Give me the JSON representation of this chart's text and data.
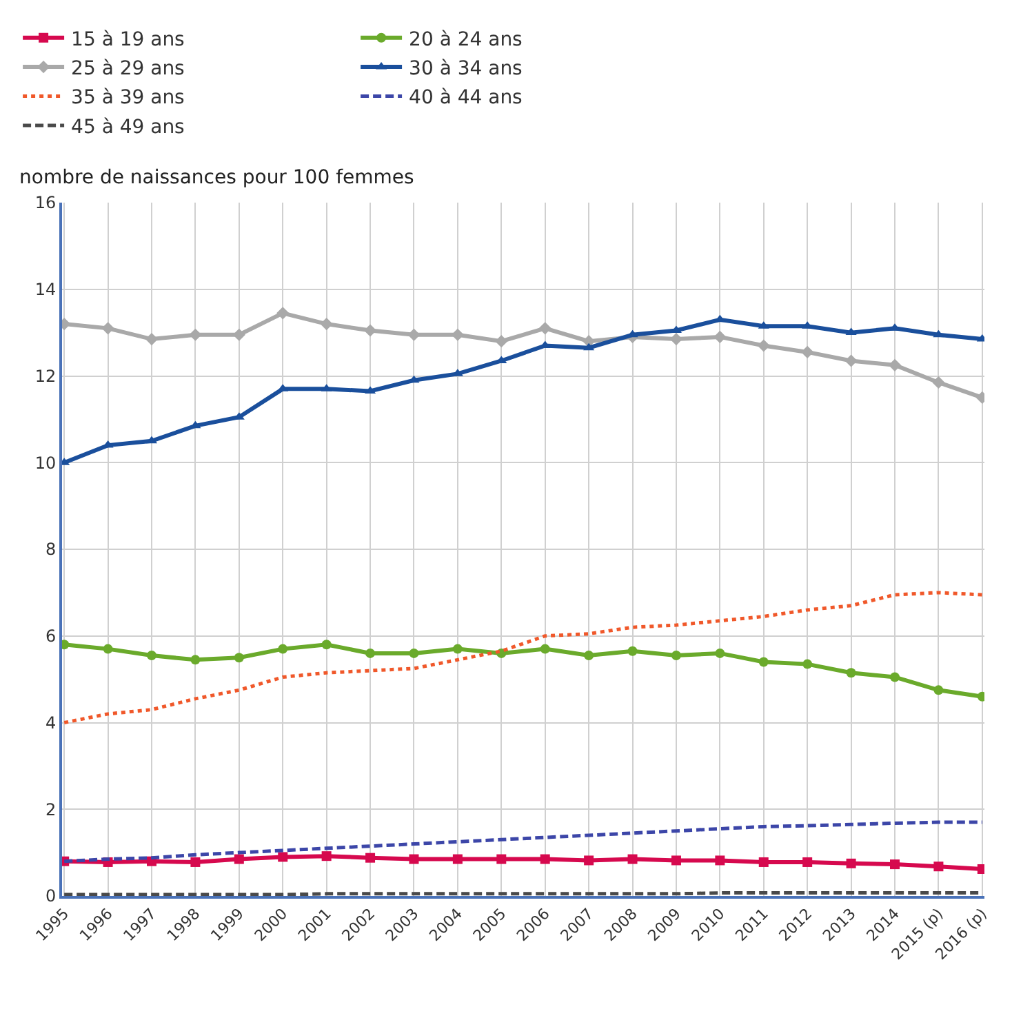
{
  "chart_data": {
    "type": "line",
    "ylabel": "nombre de naissances pour 100 femmes",
    "categories": [
      "1995",
      "1996",
      "1997",
      "1998",
      "1999",
      "2000",
      "2001",
      "2002",
      "2003",
      "2004",
      "2005",
      "2006",
      "2007",
      "2008",
      "2009",
      "2010",
      "2011",
      "2012",
      "2013",
      "2014",
      "2015 (p)",
      "2016 (p)"
    ],
    "series": [
      {
        "name": "15 à 19 ans",
        "color": "#d6094e",
        "marker": "square",
        "line_style": "solid",
        "values": [
          0.8,
          0.78,
          0.8,
          0.78,
          0.85,
          0.9,
          0.92,
          0.88,
          0.85,
          0.85,
          0.85,
          0.85,
          0.82,
          0.85,
          0.82,
          0.82,
          0.78,
          0.78,
          0.75,
          0.73,
          0.68,
          0.62
        ]
      },
      {
        "name": "20 à 24 ans",
        "color": "#6aaa2b",
        "marker": "circle",
        "line_style": "solid",
        "values": [
          5.8,
          5.7,
          5.55,
          5.45,
          5.5,
          5.7,
          5.8,
          5.6,
          5.6,
          5.7,
          5.6,
          5.7,
          5.55,
          5.65,
          5.55,
          5.6,
          5.4,
          5.35,
          5.15,
          5.05,
          4.75,
          4.6
        ]
      },
      {
        "name": "25 à 29 ans",
        "color": "#a9a9a9",
        "marker": "diamond",
        "line_style": "solid",
        "values": [
          13.2,
          13.1,
          12.85,
          12.95,
          12.95,
          13.45,
          13.2,
          13.05,
          12.95,
          12.95,
          12.8,
          13.1,
          12.8,
          12.9,
          12.85,
          12.9,
          12.7,
          12.55,
          12.35,
          12.25,
          11.85,
          11.5
        ]
      },
      {
        "name": "30 à 34 ans",
        "color": "#1a4f9c",
        "marker": "triangle",
        "line_style": "solid",
        "values": [
          10.0,
          10.4,
          10.5,
          10.85,
          11.05,
          11.7,
          11.7,
          11.65,
          11.9,
          12.05,
          12.35,
          12.7,
          12.65,
          12.95,
          13.05,
          13.3,
          13.15,
          13.15,
          13.0,
          13.1,
          12.95,
          12.85
        ]
      },
      {
        "name": "35 à 39 ans",
        "color": "#f0582a",
        "marker": "none",
        "line_style": "dotted",
        "values": [
          4.0,
          4.2,
          4.3,
          4.55,
          4.75,
          5.05,
          5.15,
          5.2,
          5.25,
          5.45,
          5.65,
          6.0,
          6.05,
          6.2,
          6.25,
          6.35,
          6.45,
          6.6,
          6.7,
          6.95,
          7.0,
          6.95
        ]
      },
      {
        "name": "40 à 44 ans",
        "color": "#3c46a8",
        "marker": "none",
        "line_style": "dashed",
        "values": [
          0.8,
          0.85,
          0.88,
          0.95,
          1.0,
          1.05,
          1.1,
          1.15,
          1.2,
          1.25,
          1.3,
          1.35,
          1.4,
          1.45,
          1.5,
          1.55,
          1.6,
          1.62,
          1.65,
          1.68,
          1.7,
          1.7
        ]
      },
      {
        "name": "45 à 49 ans",
        "color": "#4a4a4a",
        "marker": "none",
        "line_style": "dashed",
        "values": [
          0.03,
          0.03,
          0.03,
          0.03,
          0.03,
          0.03,
          0.05,
          0.05,
          0.05,
          0.05,
          0.05,
          0.05,
          0.05,
          0.05,
          0.05,
          0.07,
          0.07,
          0.07,
          0.07,
          0.07,
          0.07,
          0.07
        ]
      }
    ],
    "ylim": [
      0,
      16
    ],
    "yticks": [
      0,
      2,
      4,
      6,
      8,
      10,
      12,
      14,
      16
    ],
    "grid": true,
    "legend": "top"
  }
}
